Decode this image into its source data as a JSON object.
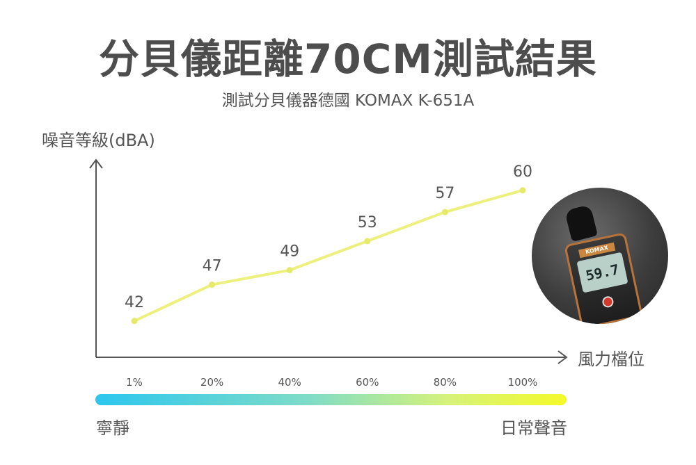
{
  "title": "分貝儀距離70CM測試結果",
  "subtitle": "測試分貝儀器德國 KOMAX K-651A",
  "photo": {
    "brand_text": "KOMAX",
    "display_value": "59.7"
  },
  "legend": {
    "left": "寧靜",
    "right": "日常聲音"
  },
  "colors": {
    "line": "#eef07e",
    "point": "#e6ea6a",
    "axis": "#555555"
  },
  "chart_data": {
    "type": "line",
    "title": "分貝儀距離70CM測試結果",
    "ylabel": "噪音等級(dBA)",
    "xlabel": "風力檔位",
    "categories": [
      "1%",
      "20%",
      "40%",
      "60%",
      "80%",
      "100%"
    ],
    "values": [
      42,
      47,
      49,
      53,
      57,
      60
    ],
    "ylim": [
      37,
      64
    ],
    "grid": false,
    "data_labels": [
      "42",
      "47",
      "49",
      "53",
      "57",
      "60"
    ]
  }
}
